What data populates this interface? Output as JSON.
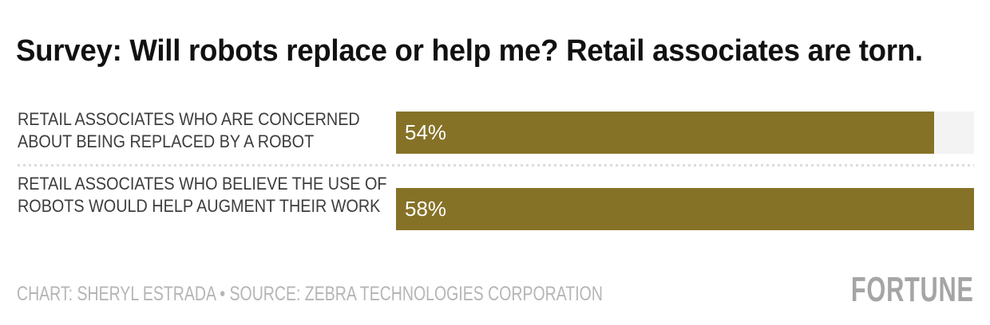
{
  "header": {
    "title": "Survey: Will robots replace or help me? Retail associates are torn."
  },
  "chart_data": {
    "type": "bar",
    "orientation": "horizontal",
    "title": "Survey: Will robots replace or help me? Retail associates are torn.",
    "categories": [
      "RETAIL ASSOCIATES WHO ARE CONCERNED ABOUT BEING REPLACED BY A ROBOT",
      "RETAIL ASSOCIATES WHO BELIEVE THE USE OF ROBOTS WOULD HELP AUGMENT THEIR WORK"
    ],
    "values": [
      54,
      58
    ],
    "value_labels": [
      "54%",
      "58%"
    ],
    "unit": "%",
    "xlim": [
      0,
      58
    ],
    "grid": false,
    "legend_position": "none",
    "bar_color": "#857227",
    "track_color": "#f3f3f3",
    "value_label_color": "#ffffff",
    "category_label_color": "#3d3d3d"
  },
  "footer": {
    "credit": "CHART: SHERYL ESTRADA • SOURCE: ZEBRA TECHNOLOGIES CORPORATION",
    "brand": "FORTUNE"
  },
  "colors": {
    "title": "#111111",
    "divider": "#dcdcdc",
    "credit": "#b5b5b5",
    "brand": "#a5a5a5",
    "background": "#ffffff"
  }
}
